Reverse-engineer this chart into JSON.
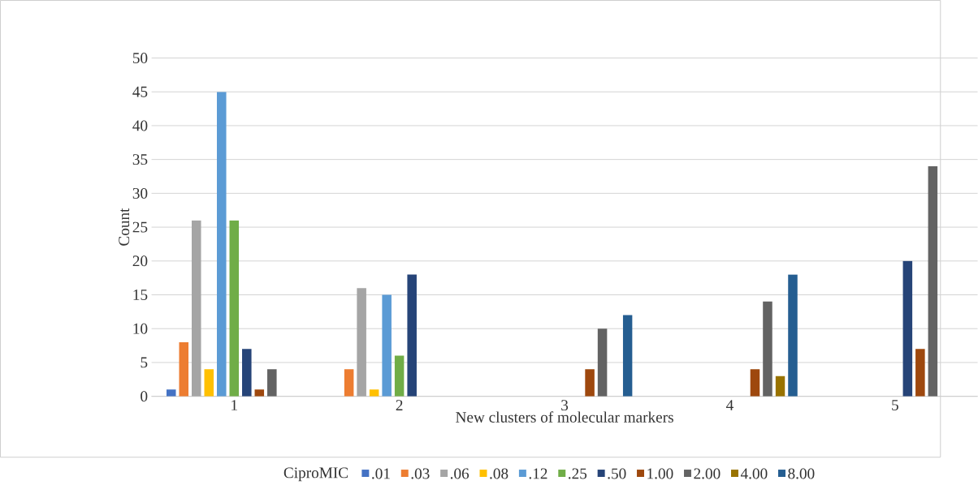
{
  "chart_data": {
    "type": "bar",
    "xlabel": "New clusters of molecular markers",
    "ylabel": "Count",
    "legend_title": "CiproMIC",
    "categories": [
      "1",
      "2",
      "3",
      "4",
      "5"
    ],
    "series": [
      {
        "name": ".01",
        "color": "#4472c4",
        "values": [
          1,
          null,
          null,
          null,
          null
        ]
      },
      {
        "name": ".03",
        "color": "#ed7d31",
        "values": [
          8,
          4,
          null,
          null,
          null
        ]
      },
      {
        "name": ".06",
        "color": "#a5a5a5",
        "values": [
          26,
          16,
          null,
          null,
          null
        ]
      },
      {
        "name": ".08",
        "color": "#ffc000",
        "values": [
          4,
          1,
          null,
          null,
          null
        ]
      },
      {
        "name": ".12",
        "color": "#5b9bd5",
        "values": [
          45,
          15,
          null,
          null,
          null
        ]
      },
      {
        "name": ".25",
        "color": "#70ad47",
        "values": [
          26,
          6,
          null,
          null,
          null
        ]
      },
      {
        "name": ".50",
        "color": "#264478",
        "values": [
          7,
          18,
          null,
          null,
          20
        ]
      },
      {
        "name": "1.00",
        "color": "#9e480e",
        "values": [
          1,
          null,
          4,
          4,
          7
        ]
      },
      {
        "name": "2.00",
        "color": "#636363",
        "values": [
          4,
          null,
          10,
          14,
          34
        ]
      },
      {
        "name": "4.00",
        "color": "#997300",
        "values": [
          null,
          null,
          null,
          3,
          null
        ]
      },
      {
        "name": "8.00",
        "color": "#255e91",
        "values": [
          null,
          null,
          12,
          18,
          null
        ]
      }
    ],
    "ylim": [
      0,
      50
    ],
    "yticks": [
      0,
      5,
      10,
      15,
      20,
      25,
      30,
      35,
      40,
      45,
      50
    ],
    "grid": "y",
    "legend": "bottom"
  }
}
